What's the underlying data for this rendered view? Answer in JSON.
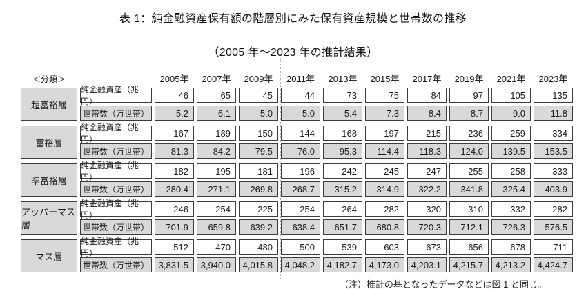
{
  "page": {
    "title": "表 1：純金融資産保有額の階層別にみた保有資産規模と世帯数の推移",
    "subtitle": "（2005 年～2023 年の推計結果）",
    "note": "（注）推計の基となったデータなどは図 1 と同じ。"
  },
  "table": {
    "classification_label": "＜分類＞",
    "years": [
      "2005年",
      "2007年",
      "2009年",
      "2011年",
      "2013年",
      "2015年",
      "2017年",
      "2019年",
      "2021年",
      "2023年"
    ],
    "metric_labels": [
      "純金融資産（兆円）",
      "世帯数（万世帯）"
    ],
    "blocks": [
      {
        "category": "超富裕層",
        "assets": [
          "46",
          "65",
          "45",
          "44",
          "73",
          "75",
          "84",
          "97",
          "105",
          "135"
        ],
        "households": [
          "5.2",
          "6.1",
          "5.0",
          "5.0",
          "5.4",
          "7.3",
          "8.4",
          "8.7",
          "9.0",
          "11.8"
        ]
      },
      {
        "category": "富裕層",
        "assets": [
          "167",
          "189",
          "150",
          "144",
          "168",
          "197",
          "215",
          "236",
          "259",
          "334"
        ],
        "households": [
          "81.3",
          "84.2",
          "79.5",
          "76.0",
          "95.3",
          "114.4",
          "118.3",
          "124.0",
          "139.5",
          "153.5"
        ]
      },
      {
        "category": "準富裕層",
        "assets": [
          "182",
          "195",
          "181",
          "196",
          "242",
          "245",
          "247",
          "255",
          "258",
          "333"
        ],
        "households": [
          "280.4",
          "271.1",
          "269.8",
          "268.7",
          "315.2",
          "314.9",
          "322.2",
          "341.8",
          "325.4",
          "403.9"
        ]
      },
      {
        "category": "アッパーマス層",
        "assets": [
          "246",
          "254",
          "225",
          "254",
          "264",
          "282",
          "320",
          "310",
          "332",
          "282"
        ],
        "households": [
          "701.9",
          "659.8",
          "639.2",
          "638.4",
          "651.7",
          "680.8",
          "720.3",
          "712.1",
          "726.3",
          "576.5"
        ]
      },
      {
        "category": "マス層",
        "assets": [
          "512",
          "470",
          "480",
          "500",
          "539",
          "603",
          "673",
          "656",
          "678",
          "711"
        ],
        "households": [
          "3,831.5",
          "3,940.0",
          "4,015.8",
          "4,048.2",
          "4,182.7",
          "4,173.0",
          "4,203.1",
          "4,215.7",
          "4,213.2",
          "4,424.7"
        ]
      }
    ]
  },
  "colors": {
    "cell_gray": "#d9d9d9",
    "cell_border": "#3d3d3d",
    "text": "#1a1a1a"
  }
}
